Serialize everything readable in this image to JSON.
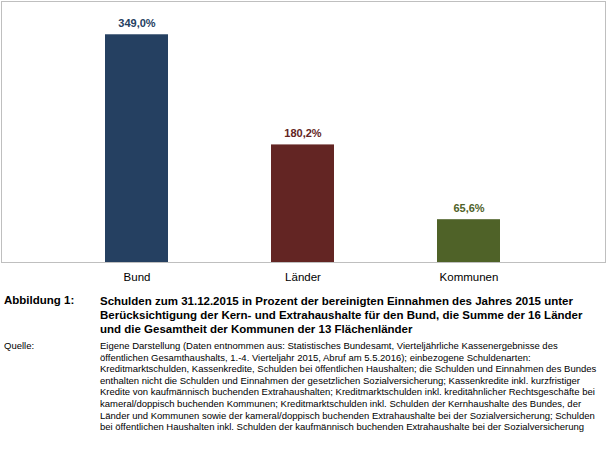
{
  "chart_data": {
    "type": "bar",
    "figure_label": "Abbildung 1:",
    "title": "Schulden zum 31.12.2015 in Prozent der bereinigten Einnahmen des Jahres 2015 unter Berücksichtigung der Kern- und Extrahaushalte für den Bund, die Summe der 16 Länder und die Gesamtheit der Kommunen der 13 Flächenländer",
    "source_label": "Quelle:",
    "source": "Eigene Darstellung (Daten entnommen aus: Statistisches Bundesamt, Vierteljährliche Kassenergebnisse des öffentlichen Gesamthaushalts, 1.-4. Vierteljahr 2015, Abruf am 5.5.2016); einbezogene Schuldenarten: Kreditmarktschulden, Kassenkredite, Schulden bei öffentlichen Haushalten; die Schulden und Einnahmen des Bundes enthalten nicht die Schulden und Einnahmen der gesetzlichen Sozialversicherung; Kassenkredite inkl. kurzfristiger Kredite von kaufmännisch buchenden Extrahaushalten; Kreditmarktschulden inkl. kreditähnlicher Rechtsgeschäfte bei kameral/doppisch buchenden Kommunen; Kreditmarktschulden inkl. Schulden der Kernhaushalte des Bundes, der Länder und Kommunen sowie der kameral/doppisch buchenden Extrahaushalte bei der Sozialversicherung; Schulden bei öffentlichen Haushalten inkl. Schulden der kaufmännisch buchenden Extrahaushalte bei der Sozialversicherung",
    "categories": [
      "Bund",
      "Länder",
      "Kommunen"
    ],
    "values": [
      349.0,
      180.2,
      65.6
    ],
    "value_labels": [
      "349,0%",
      "180,2%",
      "65,6%"
    ],
    "colors": [
      "#254061",
      "#632523",
      "#4f6228"
    ],
    "ylim": [
      0,
      400
    ],
    "yticks": [],
    "grid": false,
    "data_labels": true,
    "tick_labels": "x"
  }
}
